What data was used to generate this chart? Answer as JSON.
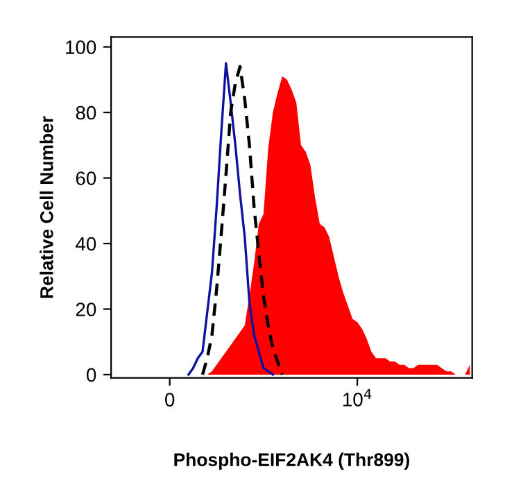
{
  "chart_data": {
    "type": "line",
    "xlabel": "Phospho-EIF2AK4 (Thr899)",
    "ylabel": "Relative Cell Number",
    "categories": [
      null,
      null,
      null,
      null,
      null,
      null,
      null,
      null,
      null,
      null,
      null,
      null,
      "0",
      null,
      null,
      null,
      null,
      null,
      null,
      null,
      null,
      null,
      null,
      null,
      null,
      null,
      null,
      null,
      null,
      null,
      null,
      null,
      null,
      null,
      null,
      null,
      null,
      null,
      null,
      null,
      null,
      null,
      null,
      null,
      null,
      null,
      null,
      null,
      null,
      null,
      null,
      null,
      "10$^{4}$",
      null,
      null,
      null,
      null,
      null,
      null,
      null,
      null,
      null,
      null,
      null,
      null,
      null,
      null,
      null,
      null,
      null,
      null,
      null,
      null,
      null,
      null,
      null,
      null
    ],
    "ylim": [
      -1,
      103
    ],
    "yticks": [
      0,
      20,
      40,
      60,
      80,
      100
    ],
    "grid": false,
    "series": [
      {
        "type": "area",
        "color": "#ff0000",
        "values": [
          null,
          null,
          null,
          null,
          null,
          null,
          null,
          null,
          null,
          null,
          null,
          null,
          null,
          null,
          null,
          null,
          null,
          null,
          null,
          null,
          0,
          1,
          3,
          5,
          7,
          9,
          11,
          13,
          15,
          24,
          34,
          46,
          49,
          69,
          80,
          86,
          91,
          90,
          87,
          83,
          70,
          68,
          64,
          54,
          46,
          45,
          42,
          36,
          30,
          25,
          21,
          17,
          16,
          14,
          11,
          7,
          5,
          5,
          5,
          4,
          4,
          3,
          3,
          2,
          2,
          3,
          3,
          3,
          3,
          3,
          2,
          1,
          1,
          0,
          0,
          0,
          3
        ]
      },
      {
        "color": "#1010a0",
        "line_style": "solid",
        "values": [
          null,
          null,
          null,
          null,
          null,
          null,
          null,
          null,
          null,
          null,
          null,
          null,
          null,
          null,
          null,
          null,
          0,
          2,
          5,
          7,
          19,
          31,
          51,
          74,
          95,
          83,
          70,
          55,
          42,
          22,
          12,
          7,
          2,
          1,
          0,
          null,
          null,
          null,
          null,
          null,
          null,
          null,
          null,
          null,
          null,
          null,
          null,
          null,
          null,
          null,
          null,
          null,
          null,
          null,
          null,
          null,
          null,
          null,
          null,
          null,
          null,
          null,
          null,
          null,
          null,
          null,
          null,
          null,
          null,
          null,
          null,
          null,
          null,
          null,
          null,
          null,
          null
        ]
      },
      {
        "color": "#000000",
        "line_style": "dashed",
        "values": [
          null,
          null,
          null,
          null,
          null,
          null,
          null,
          null,
          null,
          null,
          null,
          null,
          null,
          null,
          null,
          null,
          null,
          null,
          null,
          0,
          5,
          12,
          26,
          43,
          61,
          80,
          89,
          94,
          84,
          70,
          51,
          37,
          24,
          15,
          8,
          4,
          0,
          null,
          null,
          null,
          null,
          null,
          null,
          null,
          null,
          null,
          null,
          null,
          null,
          null,
          null,
          null,
          null,
          null,
          null,
          null,
          null,
          null,
          null,
          null,
          null,
          null,
          null,
          null,
          null,
          null,
          null,
          null,
          null,
          null,
          null,
          null,
          null,
          null,
          null,
          null,
          null
        ]
      }
    ]
  }
}
